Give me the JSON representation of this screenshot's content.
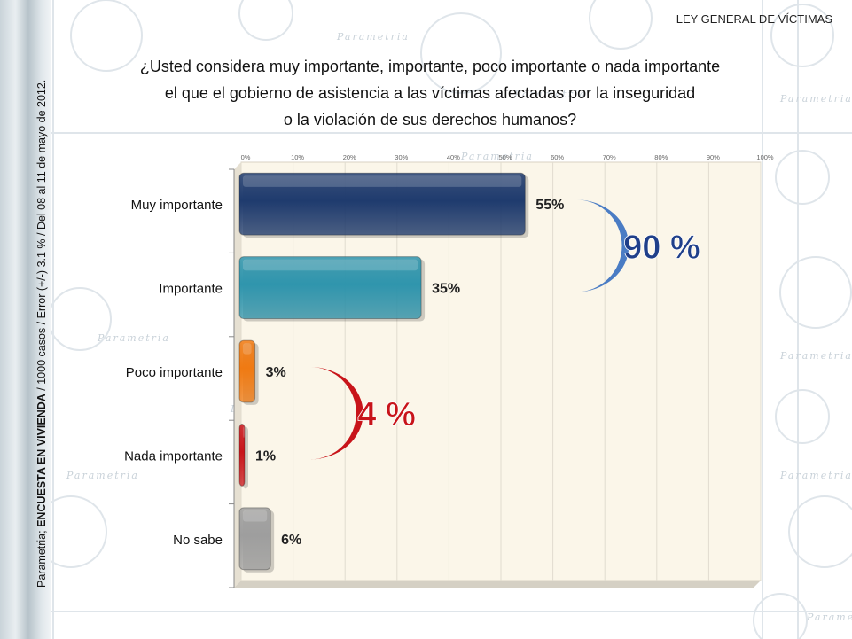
{
  "header": {
    "title": "LEY GENERAL DE VÍCTIMAS"
  },
  "question": {
    "line1": "¿Usted considera muy importante, importante, poco importante o nada importante",
    "line2": "el que el gobierno de asistencia a las víctimas afectadas por la inseguridad",
    "line3": "o la violación de sus derechos humanos?"
  },
  "source_note": {
    "prefix": "Parametria; ",
    "bold": "ENCUESTA EN VIVIENDA",
    "suffix": " / 1000 casos / Error (+/-) 3.1 % / Del 08 al 11 de mayo de 2012."
  },
  "watermark_text": "Parametria",
  "colors": {
    "plot_bg": "#fbf6e9",
    "muy_importante": "#1f3b6e",
    "importante": "#2f95ad",
    "poco_importante": "#f07a12",
    "nada_importante": "#c8141a",
    "no_sabe": "#9e9e9e",
    "bracket_blue": "#4a7cc4",
    "bracket_red": "#c8141a",
    "total_blue": "#1f3f8a",
    "total_red": "#c8141a"
  },
  "chart_data": {
    "type": "bar",
    "orientation": "horizontal",
    "categories": [
      "Muy importante",
      "Importante",
      "Poco importante",
      "Nada importante",
      "No sabe"
    ],
    "values": [
      55,
      35,
      3,
      1,
      6
    ],
    "value_labels": [
      "55%",
      "35%",
      "3%",
      "1%",
      "6%"
    ],
    "xlim": [
      0,
      100
    ],
    "x_ticks": [
      "0%",
      "10%",
      "20%",
      "30%",
      "40%",
      "50%",
      "60%",
      "70%",
      "80%",
      "90%",
      "100%"
    ],
    "grid": true,
    "annotations": [
      {
        "text": "90 %",
        "groups": [
          "Muy importante",
          "Importante"
        ]
      },
      {
        "text": "4 %",
        "groups": [
          "Poco importante",
          "Nada importante"
        ]
      }
    ]
  }
}
